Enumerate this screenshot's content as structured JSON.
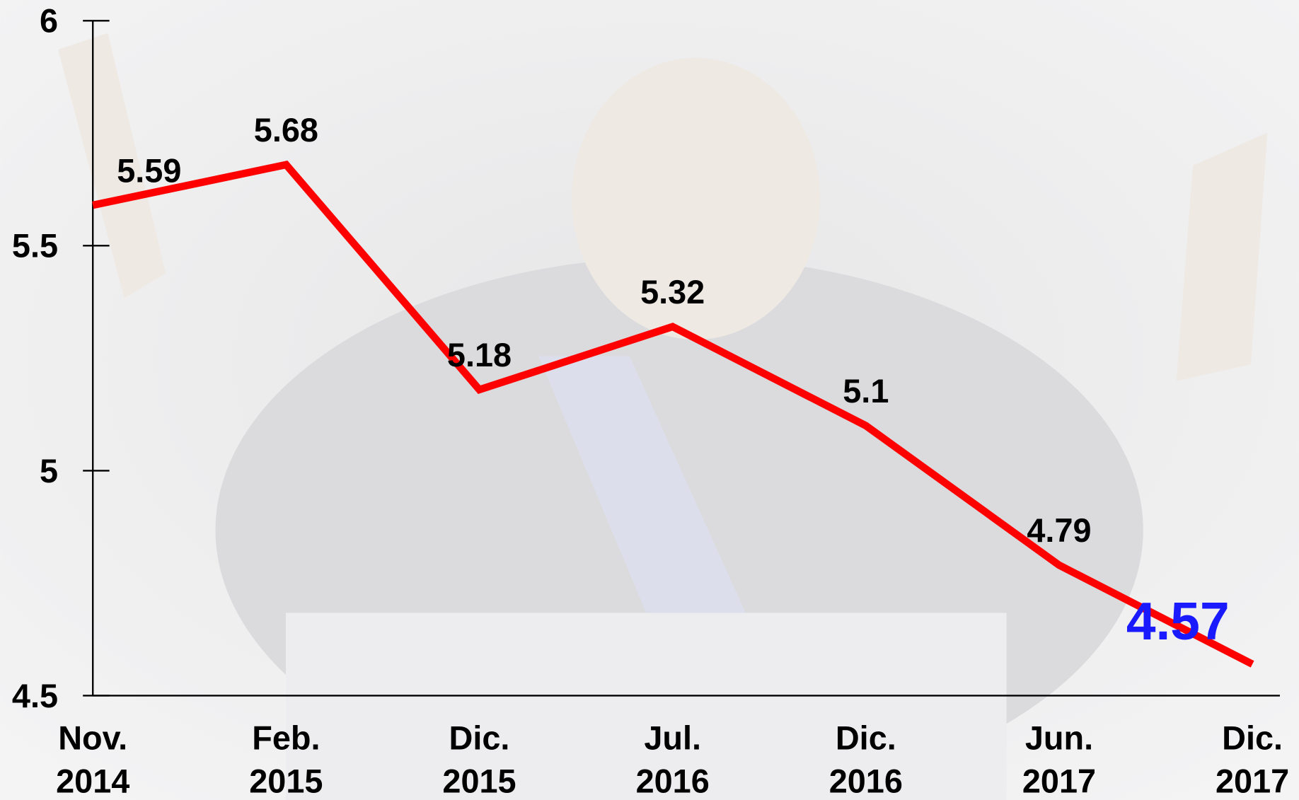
{
  "chart_data": {
    "type": "line",
    "categories": [
      "Nov. 2014",
      "Feb. 2015",
      "Dic. 2015",
      "Jul. 2016",
      "Dic. 2016",
      "Jun. 2017",
      "Dic. 2017"
    ],
    "series": [
      {
        "color": "#ff0000",
        "values": [
          5.59,
          5.68,
          5.18,
          5.32,
          5.1,
          4.79,
          4.57
        ]
      }
    ],
    "value_label_colors": [
      "#000000",
      "#000000",
      "#000000",
      "#000000",
      "#000000",
      "#000000",
      "#1a1aff"
    ],
    "ylim": [
      4.5,
      6
    ],
    "yticks": [
      4.5,
      5,
      5.5,
      6
    ],
    "grid": false
  }
}
